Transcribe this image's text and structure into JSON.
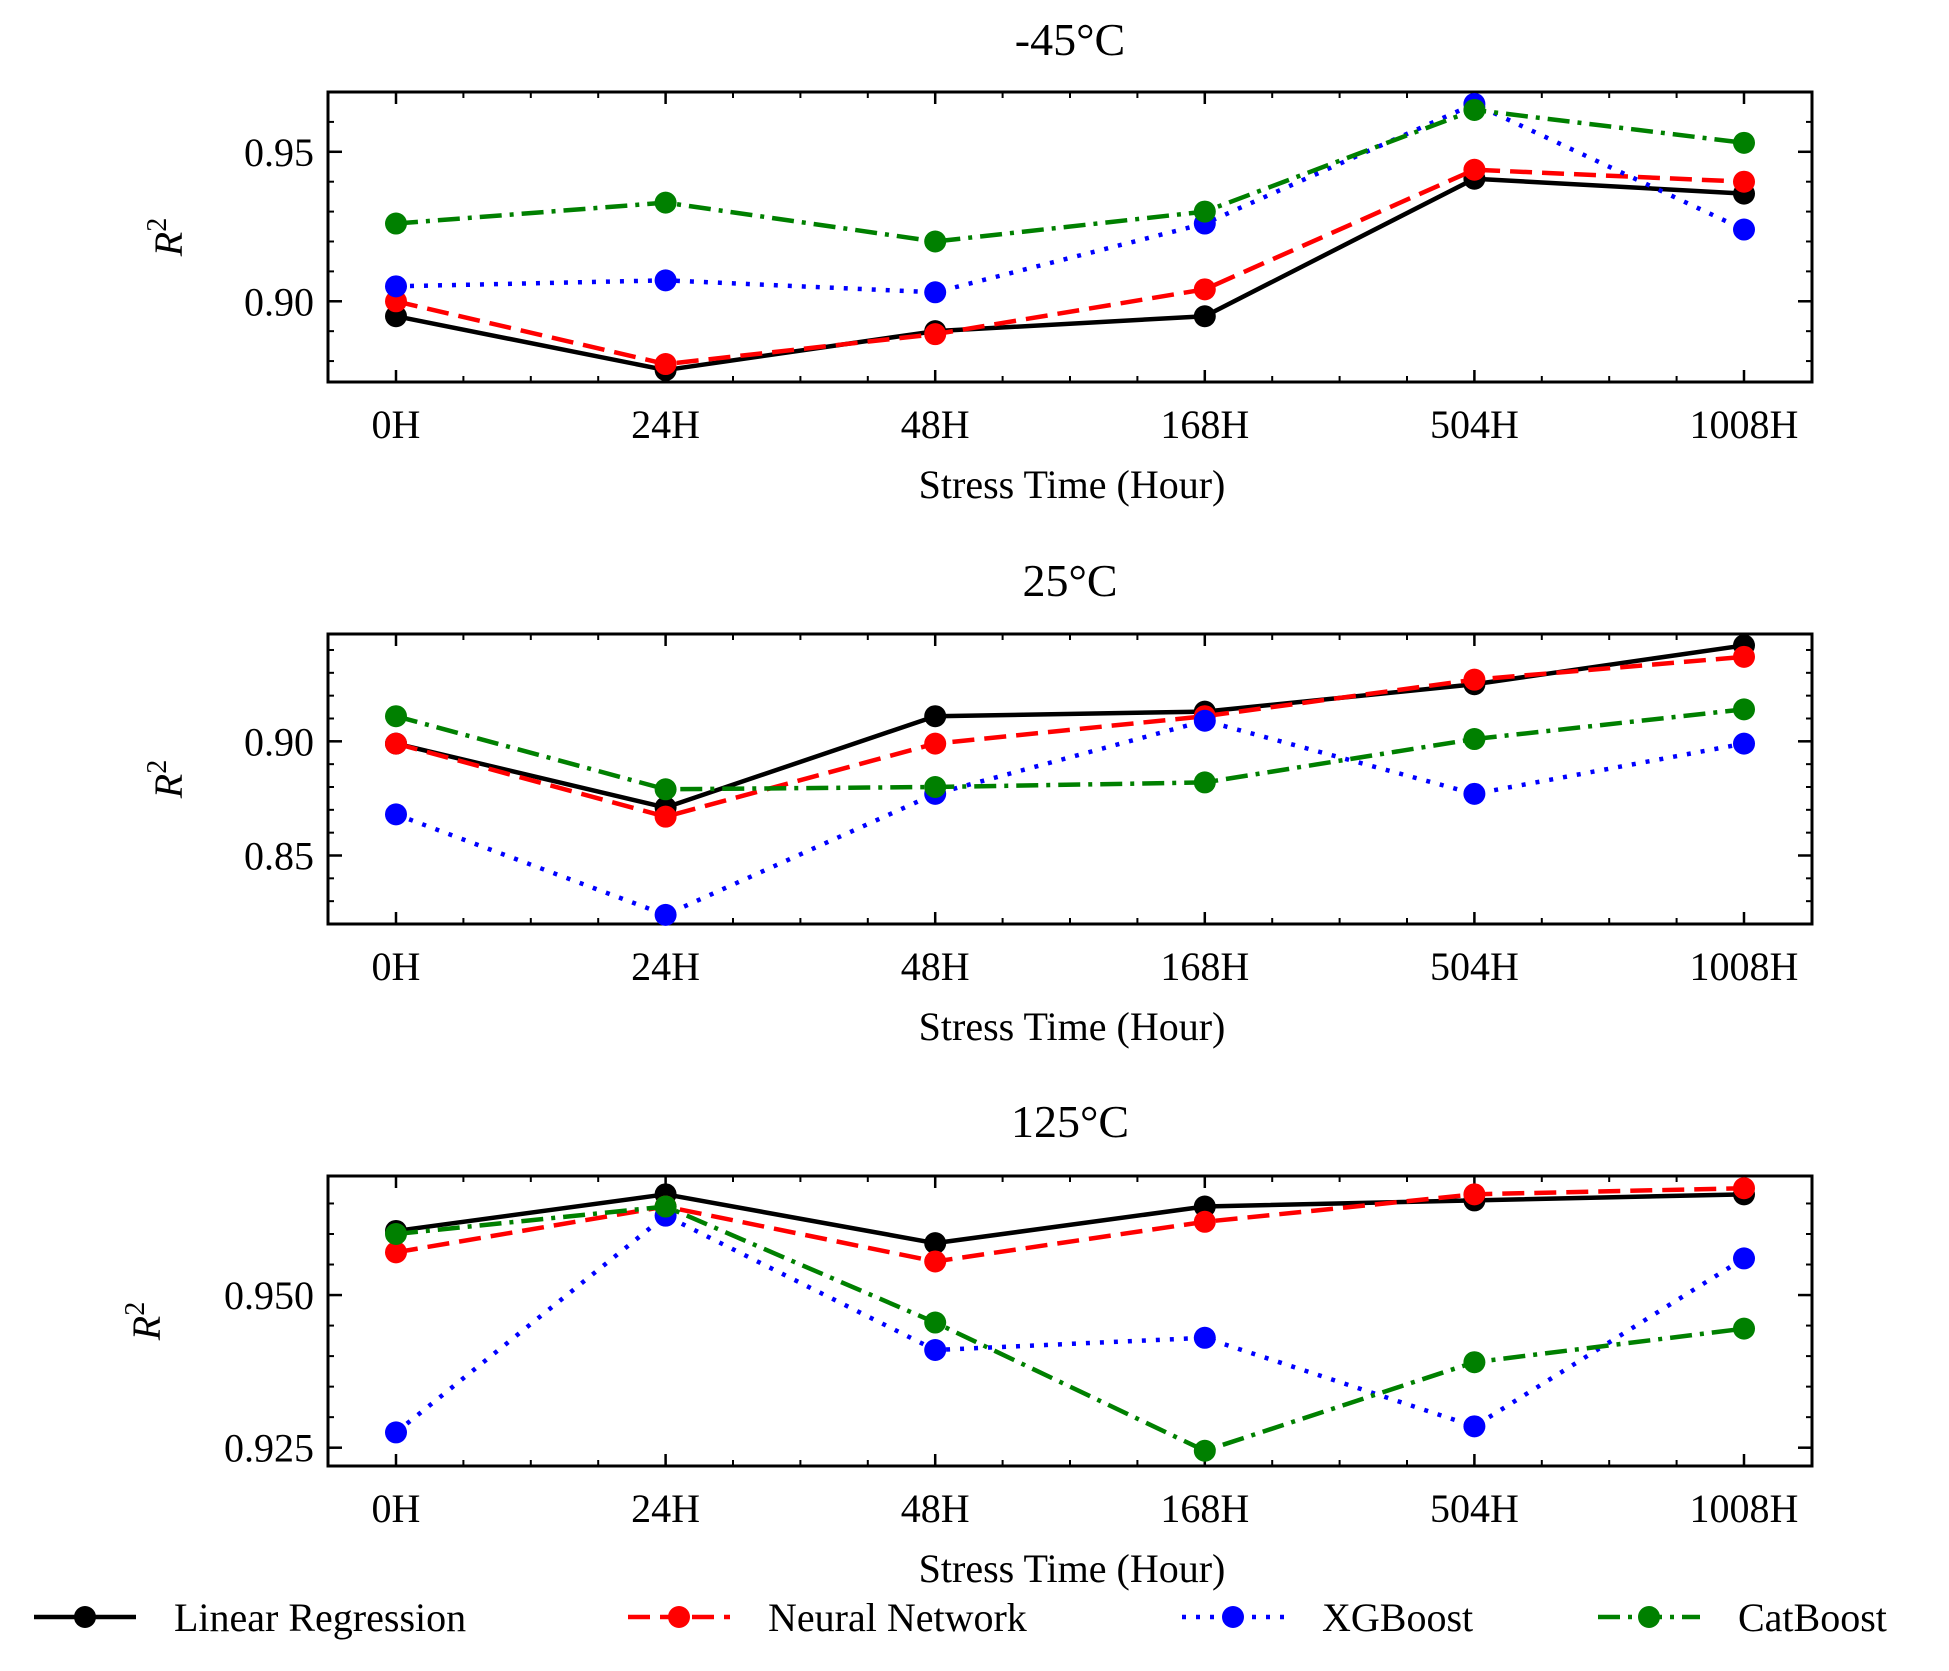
{
  "chart_data": {
    "type": "line",
    "categories": [
      "0H",
      "24H",
      "48H",
      "168H",
      "504H",
      "1008H"
    ],
    "series_styles": [
      {
        "name": "Linear Regression",
        "color": "#000000",
        "dash": "solid"
      },
      {
        "name": "Neural Network",
        "color": "#ff0000",
        "dash": "dashed"
      },
      {
        "name": "XGBoost",
        "color": "#0000ff",
        "dash": "dotted"
      },
      {
        "name": "CatBoost",
        "color": "#008000",
        "dash": "dashdot"
      }
    ],
    "legend": {
      "placement": "bottom",
      "entries": [
        "Linear Regression",
        "Neural Network",
        "XGBoost",
        "CatBoost"
      ]
    },
    "panels": [
      {
        "title": "-45°C",
        "xlabel": "Stress Time (Hour)",
        "ylabel": "R",
        "ylabel_sup": "2",
        "ylim": [
          0.873,
          0.97
        ],
        "yticks": [
          0.9,
          0.95
        ],
        "ytick_labels": [
          "0.90",
          "0.95"
        ],
        "series": [
          {
            "name": "Linear Regression",
            "values": [
              0.895,
              0.877,
              0.89,
              0.895,
              0.941,
              0.936
            ]
          },
          {
            "name": "Neural Network",
            "values": [
              0.9,
              0.879,
              0.889,
              0.904,
              0.944,
              0.94
            ]
          },
          {
            "name": "XGBoost",
            "values": [
              0.905,
              0.907,
              0.903,
              0.926,
              0.966,
              0.924
            ]
          },
          {
            "name": "CatBoost",
            "values": [
              0.926,
              0.933,
              0.92,
              0.93,
              0.964,
              0.953
            ]
          }
        ]
      },
      {
        "title": "25°C",
        "xlabel": "Stress Time (Hour)",
        "ylabel": "R",
        "ylabel_sup": "2",
        "ylim": [
          0.82,
          0.947
        ],
        "yticks": [
          0.85,
          0.9
        ],
        "ytick_labels": [
          "0.85",
          "0.90"
        ],
        "series": [
          {
            "name": "Linear Regression",
            "values": [
              0.899,
              0.871,
              0.911,
              0.913,
              0.925,
              0.942
            ]
          },
          {
            "name": "Neural Network",
            "values": [
              0.899,
              0.867,
              0.899,
              0.911,
              0.927,
              0.937
            ]
          },
          {
            "name": "XGBoost",
            "values": [
              0.868,
              0.824,
              0.877,
              0.909,
              0.877,
              0.899
            ]
          },
          {
            "name": "CatBoost",
            "values": [
              0.911,
              0.879,
              0.88,
              0.882,
              0.901,
              0.914
            ]
          }
        ]
      },
      {
        "title": "125°C",
        "xlabel": "Stress Time (Hour)",
        "ylabel": "R",
        "ylabel_sup": "2",
        "ylim": [
          0.922,
          0.9695
        ],
        "yticks": [
          0.925,
          0.95
        ],
        "ytick_labels": [
          "0.925",
          "0.950"
        ],
        "series": [
          {
            "name": "Linear Regression",
            "values": [
              0.9605,
              0.9665,
              0.9585,
              0.9645,
              0.9655,
              0.9665
            ]
          },
          {
            "name": "Neural Network",
            "values": [
              0.957,
              0.9645,
              0.9555,
              0.962,
              0.9665,
              0.9675
            ]
          },
          {
            "name": "XGBoost",
            "values": [
              0.9275,
              0.963,
              0.941,
              0.943,
              0.9285,
              0.956
            ]
          },
          {
            "name": "CatBoost",
            "values": [
              0.96,
              0.9645,
              0.9455,
              0.9245,
              0.939,
              0.9445
            ]
          }
        ]
      }
    ]
  }
}
